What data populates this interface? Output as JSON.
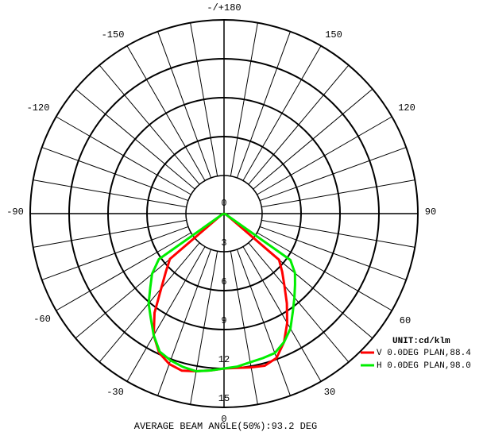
{
  "chart_data": {
    "type": "polar",
    "title": "",
    "unit_label": "UNIT:cd/klm",
    "footer": "AVERAGE BEAM ANGLE(50%):93.2 DEG",
    "radial_ticks": [
      "0",
      "3",
      "6",
      "9",
      "12",
      "15"
    ],
    "rlim": [
      0,
      15
    ],
    "radial_step": 3,
    "inner_ring_value": 3,
    "angle_labels": {
      "top": "-/+180",
      "upper_left": "-150",
      "upper_right": "150",
      "mid_left_high": "-120",
      "mid_right_high": "120",
      "left": "-90",
      "right": "90",
      "lower_left": "-60",
      "lower_right": "60",
      "bottom_left": "-30",
      "bottom_right": "30",
      "bottom": "0"
    },
    "spoke_step_deg": 10,
    "colors": {
      "axes": "#000000",
      "V": "#ff0000",
      "H": "#00ee00"
    },
    "series": [
      {
        "name": "V 0.0DEG PLAN,88.4",
        "color": "#ff0000",
        "angles": [
          -90,
          -80,
          -70,
          -60,
          -50,
          -45,
          -40,
          -35,
          -30,
          -25,
          -20,
          -15,
          -10,
          -5,
          0,
          5,
          10,
          15,
          20,
          25,
          30,
          35,
          40,
          45,
          50,
          60,
          70,
          80,
          90
        ],
        "values": [
          0,
          0,
          0.1,
          0.3,
          5.5,
          6.4,
          7.6,
          9.4,
          10.9,
          11.9,
          12.4,
          12.6,
          12.4,
          12.2,
          12.0,
          12.0,
          12.1,
          12.2,
          11.9,
          11.0,
          9.8,
          8.5,
          7.3,
          6.4,
          5.6,
          0.3,
          0.1,
          0,
          0
        ]
      },
      {
        "name": "H 0.0DEG PLAN,98.0",
        "color": "#00ee00",
        "angles": [
          -90,
          -80,
          -70,
          -60,
          -55,
          -50,
          -45,
          -40,
          -35,
          -30,
          -25,
          -20,
          -15,
          -10,
          -5,
          0,
          5,
          10,
          15,
          20,
          25,
          30,
          35,
          40,
          45,
          50,
          55,
          60,
          70,
          80,
          90
        ],
        "values": [
          0,
          0,
          0.1,
          0.3,
          6.2,
          7.3,
          8.1,
          9.1,
          9.9,
          10.9,
          11.8,
          12.1,
          12.3,
          12.4,
          12.2,
          12.0,
          11.9,
          11.7,
          11.6,
          11.5,
          11.0,
          10.3,
          9.3,
          8.5,
          7.8,
          7.2,
          6.3,
          0.3,
          0.1,
          0,
          0
        ]
      }
    ]
  }
}
